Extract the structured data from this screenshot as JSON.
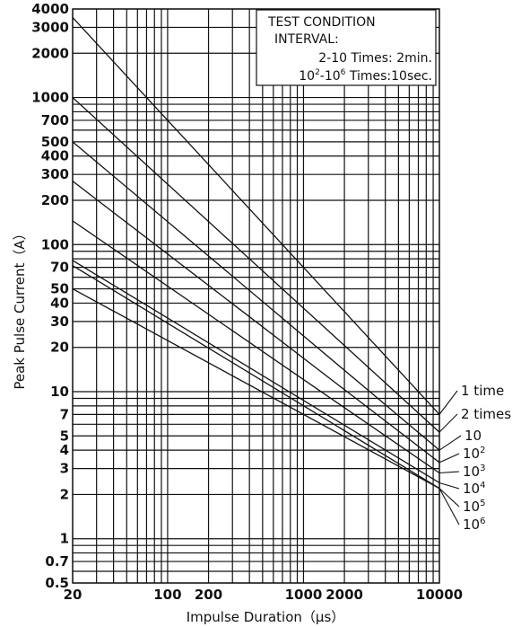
{
  "chart_data": {
    "type": "line",
    "scale": "log-log",
    "xlabel": "Impulse Duration（μs）",
    "ylabel": "Peak Pulse Current（A）",
    "xlim": [
      20,
      10000
    ],
    "ylim": [
      0.5,
      4000
    ],
    "x_tick_labels": [
      {
        "value": 20,
        "label": "20"
      },
      {
        "value": 100,
        "label": "100"
      },
      {
        "value": 200,
        "label": "200"
      },
      {
        "value": 1000,
        "label": "1000"
      },
      {
        "value": 2000,
        "label": "2000"
      },
      {
        "value": 10000,
        "label": "10000"
      }
    ],
    "y_tick_labels": [
      {
        "value": 4000,
        "label": "4000"
      },
      {
        "value": 3000,
        "label": "3000"
      },
      {
        "value": 2000,
        "label": "2000"
      },
      {
        "value": 1000,
        "label": "1000"
      },
      {
        "value": 700,
        "label": "700"
      },
      {
        "value": 500,
        "label": "500"
      },
      {
        "value": 400,
        "label": "400"
      },
      {
        "value": 300,
        "label": "300"
      },
      {
        "value": 200,
        "label": "200"
      },
      {
        "value": 100,
        "label": "100"
      },
      {
        "value": 70,
        "label": "70"
      },
      {
        "value": 50,
        "label": "50"
      },
      {
        "value": 40,
        "label": "40"
      },
      {
        "value": 30,
        "label": "30"
      },
      {
        "value": 20,
        "label": "20"
      },
      {
        "value": 10,
        "label": "10"
      },
      {
        "value": 7,
        "label": "7"
      },
      {
        "value": 5,
        "label": "5"
      },
      {
        "value": 4,
        "label": "4"
      },
      {
        "value": 3,
        "label": "3"
      },
      {
        "value": 2,
        "label": "2"
      },
      {
        "value": 1,
        "label": "1"
      },
      {
        "value": 0.7,
        "label": "0.7"
      },
      {
        "value": 0.5,
        "label": "0.5"
      }
    ],
    "x_gridlines": [
      20,
      30,
      40,
      50,
      60,
      70,
      80,
      90,
      100,
      200,
      300,
      400,
      500,
      600,
      700,
      800,
      900,
      1000,
      2000,
      3000,
      4000,
      5000,
      6000,
      7000,
      8000,
      9000,
      10000
    ],
    "y_gridlines": [
      0.5,
      0.6,
      0.7,
      0.8,
      0.9,
      1,
      2,
      3,
      4,
      5,
      6,
      7,
      8,
      9,
      10,
      20,
      30,
      40,
      50,
      60,
      70,
      80,
      90,
      100,
      200,
      300,
      400,
      500,
      600,
      700,
      800,
      900,
      1000,
      2000,
      3000,
      4000
    ],
    "series": [
      {
        "name": "1 time",
        "x": [
          20,
          10000
        ],
        "y": [
          3500,
          7.0
        ]
      },
      {
        "name": "2 times",
        "x": [
          20,
          10000
        ],
        "y": [
          1000,
          5.3
        ]
      },
      {
        "name": "10",
        "x": [
          20,
          10000
        ],
        "y": [
          500,
          4.0
        ]
      },
      {
        "name": "10²",
        "x": [
          20,
          10000
        ],
        "y": [
          270,
          3.3
        ]
      },
      {
        "name": "10³",
        "x": [
          20,
          10000
        ],
        "y": [
          145,
          2.8
        ]
      },
      {
        "name": "10⁴",
        "x": [
          20,
          10000
        ],
        "y": [
          78,
          2.4
        ]
      },
      {
        "name": "10⁵",
        "x": [
          20,
          10000
        ],
        "y": [
          72,
          2.2
        ]
      },
      {
        "name": "10⁶",
        "x": [
          20,
          10000
        ],
        "y": [
          50,
          2.2
        ]
      }
    ],
    "series_labels": [
      {
        "base": "1 time",
        "sup": ""
      },
      {
        "base": "2 times",
        "sup": ""
      },
      {
        "base": "10",
        "sup": ""
      },
      {
        "base": "10",
        "sup": "2"
      },
      {
        "base": "10",
        "sup": "3"
      },
      {
        "base": "10",
        "sup": "4"
      },
      {
        "base": "10",
        "sup": "5"
      },
      {
        "base": "10",
        "sup": "6"
      }
    ],
    "annotation_box": {
      "title": "TEST CONDITION",
      "subtitle": "INTERVAL:",
      "line1": "2-10 Times: 2min.",
      "line2_base": "10",
      "line2_sup1": "2",
      "line2_mid": "-10",
      "line2_sup2": "6",
      "line2_tail": " Times:10sec."
    },
    "grid": true,
    "legend": "none"
  }
}
